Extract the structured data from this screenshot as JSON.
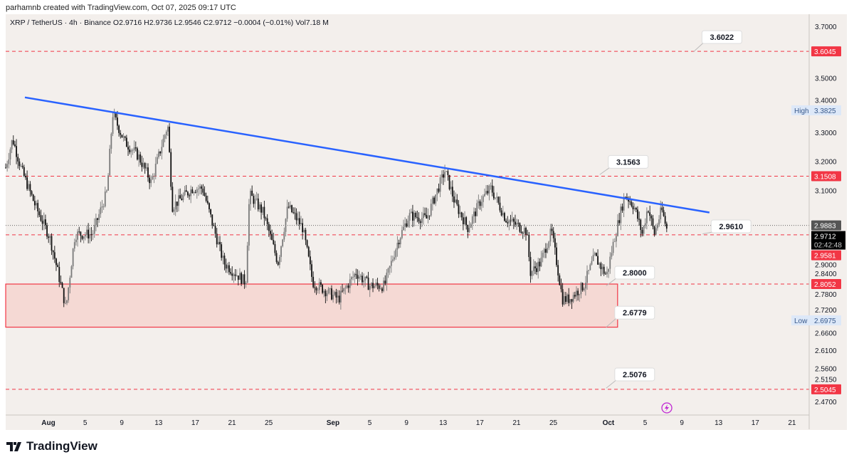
{
  "credit": "parhamnb created with TradingView.com, Oct 07, 2025 09:17 UTC",
  "legend": "XRP / TetherUS · 4h · Binance  O2.9716  H2.9736  L2.9546  C2.9712  −0.0004 (−0.01%)  Vol7.18 M",
  "brand": "TradingView",
  "colors": {
    "bg": "#f3efec",
    "trend": "#2962ff",
    "red": "#f23645",
    "zone": "#f5d9d4",
    "up": "#7a7a7a",
    "down": "#111111"
  },
  "chart_data": {
    "type": "candlestick",
    "symbol": "XRP / TetherUS",
    "interval": "4h",
    "scale": "log",
    "ylim": [
      2.455,
      3.72
    ],
    "xlim_days_from_aug1": [
      -4.7,
      80.5
    ],
    "y_ticks": [
      "3.7000",
      "3.5000",
      "3.4000",
      "3.3000",
      "3.2000",
      "3.1000",
      "2.9000",
      "2.8400",
      "2.7800",
      "2.7200",
      "2.6600",
      "2.6100",
      "2.5600",
      "2.5150",
      "2.4700"
    ],
    "x_ticks": [
      {
        "label": "Aug",
        "day": 0,
        "bold": true
      },
      {
        "label": "5",
        "day": 4
      },
      {
        "label": "9",
        "day": 8
      },
      {
        "label": "13",
        "day": 12
      },
      {
        "label": "17",
        "day": 16
      },
      {
        "label": "21",
        "day": 20
      },
      {
        "label": "25",
        "day": 24
      },
      {
        "label": "Sep",
        "day": 31,
        "bold": true
      },
      {
        "label": "5",
        "day": 35
      },
      {
        "label": "9",
        "day": 39
      },
      {
        "label": "13",
        "day": 43
      },
      {
        "label": "17",
        "day": 47
      },
      {
        "label": "21",
        "day": 51
      },
      {
        "label": "25",
        "day": 55
      },
      {
        "label": "Oct",
        "day": 61,
        "bold": true
      },
      {
        "label": "5",
        "day": 65
      },
      {
        "label": "9",
        "day": 69
      },
      {
        "label": "13",
        "day": 73
      },
      {
        "label": "17",
        "day": 77
      },
      {
        "label": "21",
        "day": 81
      }
    ],
    "price_path": [
      [
        -4.65,
        3.18
      ],
      [
        -3.9,
        3.28
      ],
      [
        -2.9,
        3.17
      ],
      [
        -1.4,
        3.05
      ],
      [
        0.15,
        2.95
      ],
      [
        1.7,
        2.76
      ],
      [
        1.9,
        2.73
      ],
      [
        2.9,
        2.96
      ],
      [
        4.8,
        2.96
      ],
      [
        6.4,
        3.1
      ],
      [
        7.0,
        3.37
      ],
      [
        8.3,
        3.27
      ],
      [
        9.8,
        3.22
      ],
      [
        11.2,
        3.13
      ],
      [
        13.0,
        3.33
      ],
      [
        13.5,
        3.05
      ],
      [
        15.7,
        3.11
      ],
      [
        16.8,
        3.11
      ],
      [
        18.0,
        2.98
      ],
      [
        19.1,
        2.87
      ],
      [
        21.5,
        2.81
      ],
      [
        21.9,
        3.09
      ],
      [
        23.4,
        3.03
      ],
      [
        25.0,
        2.87
      ],
      [
        26.1,
        3.05
      ],
      [
        27.7,
        2.98
      ],
      [
        28.8,
        2.81
      ],
      [
        31.6,
        2.76
      ],
      [
        33.5,
        2.84
      ],
      [
        35.0,
        2.8
      ],
      [
        36.6,
        2.8
      ],
      [
        38.1,
        2.94
      ],
      [
        39.3,
        3.02
      ],
      [
        41.2,
        3.01
      ],
      [
        43.2,
        3.17
      ],
      [
        44.3,
        3.06
      ],
      [
        45.7,
        2.98
      ],
      [
        47.1,
        3.07
      ],
      [
        48.2,
        3.11
      ],
      [
        49.8,
        3.01
      ],
      [
        52.1,
        2.97
      ],
      [
        52.5,
        2.84
      ],
      [
        53.6,
        2.87
      ],
      [
        54.8,
        2.97
      ],
      [
        56.0,
        2.76
      ],
      [
        56.7,
        2.76
      ],
      [
        58.3,
        2.8
      ],
      [
        59.5,
        2.89
      ],
      [
        60.8,
        2.83
      ],
      [
        61.6,
        2.94
      ],
      [
        62.8,
        3.09
      ],
      [
        63.8,
        3.05
      ],
      [
        64.7,
        2.96
      ],
      [
        65.3,
        3.05
      ],
      [
        66.0,
        2.96
      ],
      [
        66.8,
        3.04
      ],
      [
        67.4,
        2.9712
      ]
    ],
    "trendline": {
      "from": [
        -2.56,
        3.43
      ],
      "to": [
        72.0,
        3.03
      ]
    },
    "horizontal_levels": [
      {
        "price": 3.6045,
        "label": "3.6045"
      },
      {
        "price": 3.1508,
        "label": "3.1508"
      },
      {
        "price": 2.9581,
        "label": "2.9581"
      },
      {
        "price": 2.8052,
        "label": "2.8052"
      },
      {
        "price": 2.5045,
        "label": "2.5045"
      }
    ],
    "dotted_level": {
      "price": 2.9883,
      "label": "2.9883"
    },
    "zone": {
      "top": 2.8052,
      "bottom": 2.6779,
      "end_day": 62.0
    },
    "callouts": [
      {
        "label": "3.6022",
        "price": 3.6022,
        "day": 71.5,
        "label_price": 3.66
      },
      {
        "label": "3.1563",
        "price": 3.1563,
        "day": 61.3,
        "label_price": 3.2
      },
      {
        "label": "2.9610",
        "price": 2.961,
        "day": 72.5,
        "label_price": 2.985
      },
      {
        "label": "2.8000",
        "price": 2.8,
        "day": 62.0,
        "label_price": 2.84
      },
      {
        "label": "2.6779",
        "price": 2.6779,
        "day": 62.0,
        "label_price": 2.72
      },
      {
        "label": "2.5076",
        "price": 2.5076,
        "day": 62.0,
        "label_price": 2.545
      }
    ],
    "last_price": {
      "price": "2.9712",
      "countdown": "02:42:48"
    },
    "high": {
      "label": "High",
      "value": "3.3825",
      "price": 3.3825
    },
    "low": {
      "label": "Low",
      "value": "2.6975",
      "price": 2.6975
    }
  }
}
